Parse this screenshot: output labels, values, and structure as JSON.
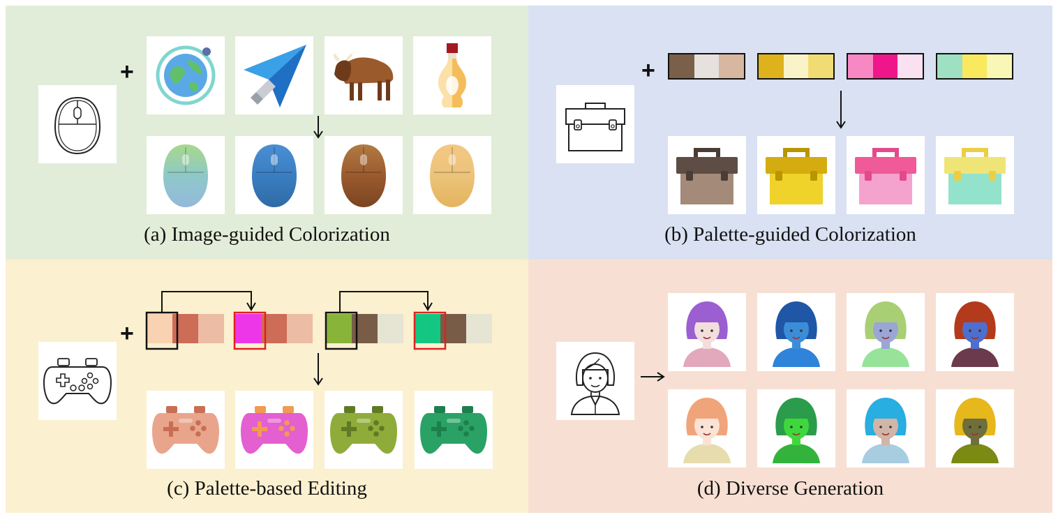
{
  "panels": [
    {
      "id": "a",
      "caption": "(a) Image-guided Colorization",
      "bg": "#e2edd9"
    },
    {
      "id": "b",
      "caption": "(b) Palette-guided Colorization",
      "bg": "#d9e1f2"
    },
    {
      "id": "c",
      "caption": "(c) Palette-based Editing",
      "bg": "#fbf0cf"
    },
    {
      "id": "d",
      "caption": "(d) Diverse Generation",
      "bg": "#f7e0d3"
    }
  ],
  "symbols": {
    "plus": "+"
  },
  "icons": {
    "a_input": "mouse-sketch-icon",
    "a_references": [
      "globe-icon",
      "paper-plane-icon",
      "bison-icon",
      "bottle-icon"
    ],
    "a_outputs": [
      "mouse-icon",
      "mouse-icon",
      "mouse-icon",
      "mouse-icon"
    ],
    "b_input": "toolbox-sketch-icon",
    "b_outputs": [
      "toolbox-icon",
      "toolbox-icon",
      "toolbox-icon",
      "toolbox-icon"
    ],
    "c_input": "gamepad-sketch-icon",
    "c_outputs": [
      "gamepad-icon",
      "gamepad-icon",
      "gamepad-icon",
      "gamepad-icon"
    ],
    "d_input": "girl-sketch-icon",
    "d_outputs": [
      "girl-avatar-icon",
      "girl-avatar-icon",
      "girl-avatar-icon",
      "girl-avatar-icon",
      "girl-avatar-icon",
      "girl-avatar-icon",
      "girl-avatar-icon",
      "girl-avatar-icon"
    ]
  },
  "colors": {
    "a_mice": [
      {
        "top": "#a7d98a",
        "body": "#8fc8c8",
        "low": "#93b9dc"
      },
      {
        "top": "#4a8fd4",
        "body": "#3a7ec1",
        "low": "#2f6aa6"
      },
      {
        "top": "#b27a44",
        "body": "#9b5a2e",
        "low": "#7a4522"
      },
      {
        "top": "#f3c884",
        "body": "#ecc37a",
        "low": "#e4b45e"
      }
    ],
    "b_palettes": [
      [
        "#7a6049",
        "#e6e1de",
        "#d7b79f"
      ],
      [
        "#ddb21c",
        "#fbf3c8",
        "#f1dc73"
      ],
      [
        "#f888c4",
        "#ee168a",
        "#fae0f0"
      ],
      [
        "#9fe0c3",
        "#f8e95e",
        "#f8f7b5"
      ]
    ],
    "b_boxes": [
      {
        "lid": "#5d4d45",
        "body": "#a48a78",
        "handle": "#4a3c36"
      },
      {
        "lid": "#d5ac10",
        "body": "#efd22a",
        "handle": "#b99500"
      },
      {
        "lid": "#f05a99",
        "body": "#f4a3cf",
        "handle": "#e3498b"
      },
      {
        "lid": "#efe576",
        "body": "#93e2cb",
        "handle": "#eccd45"
      }
    ],
    "c_palettes": [
      [
        "#f9d3b1",
        "#cd6c57",
        "#ecbca4"
      ],
      [
        "#ee36e9",
        "#cd6c57",
        "#ecbca4"
      ],
      [
        "#88b43a",
        "#785c47",
        "#e6e4d3"
      ],
      [
        "#13c782",
        "#785c47",
        "#e6e4d3"
      ]
    ],
    "c_pads": [
      {
        "body": "#e9a58c",
        "accent": "#c96e55"
      },
      {
        "body": "#e45fd0",
        "accent": "#f19b52"
      },
      {
        "body": "#8fac3a",
        "accent": "#5f7a25"
      },
      {
        "body": "#2aa266",
        "accent": "#1d7f4c"
      }
    ],
    "d_girls": [
      {
        "hair": "#9b5fd1",
        "skin": "#f2dedd",
        "shirt": "#e2a8bc"
      },
      {
        "hair": "#1f56a6",
        "skin": "#3b8dd8",
        "shirt": "#2f83d8"
      },
      {
        "hair": "#a9cf74",
        "skin": "#9aa6d6",
        "shirt": "#97e39a"
      },
      {
        "hair": "#b43a1c",
        "skin": "#4f6fcf",
        "shirt": "#6b3a4c"
      },
      {
        "hair": "#f0a47a",
        "skin": "#fae2d4",
        "shirt": "#e6dcae"
      },
      {
        "hair": "#2b9c4b",
        "skin": "#3fd83c",
        "shirt": "#33b33c"
      },
      {
        "hair": "#28aee0",
        "skin": "#d1b6a7",
        "shirt": "#a8cce0"
      },
      {
        "hair": "#e6b81c",
        "skin": "#6f6f3c",
        "shirt": "#7a8a12"
      }
    ]
  }
}
